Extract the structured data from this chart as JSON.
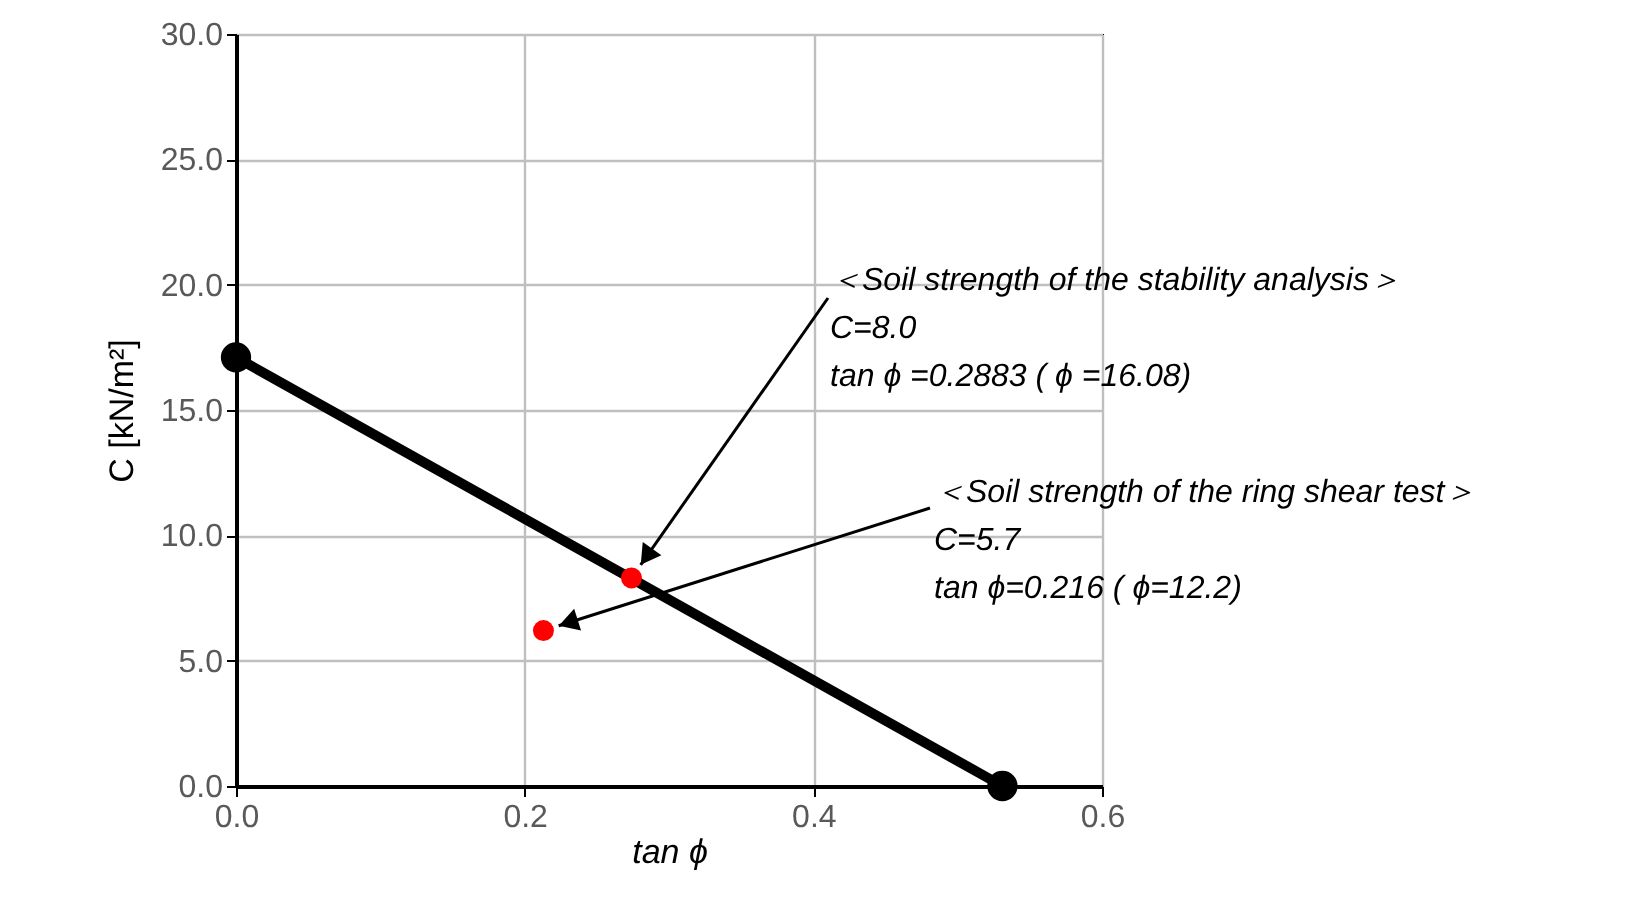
{
  "chart_data": {
    "type": "line",
    "xlabel": "tan ϕ",
    "ylabel": "C [kN/m²]",
    "xlim": [
      0,
      0.6
    ],
    "xticks": [
      {
        "value": 0,
        "label": "0.0"
      },
      {
        "value": 0.2,
        "label": "0.2"
      },
      {
        "value": 0.4,
        "label": "0.4"
      },
      {
        "value": 0.6,
        "label": "0.6"
      }
    ],
    "ylim": [
      0,
      30
    ],
    "yticks": [
      {
        "value": 0,
        "label": "0.0"
      },
      {
        "value": 5,
        "label": "5.0"
      },
      {
        "value": 10,
        "label": "10.0"
      },
      {
        "value": 15,
        "label": "15.0"
      },
      {
        "value": 20,
        "label": "20.0"
      },
      {
        "value": 25,
        "label": "25.0"
      },
      {
        "value": 30,
        "label": "30.0"
      }
    ],
    "grid": true,
    "series": [
      {
        "type": "line",
        "color": "#000000",
        "marker": "circle",
        "x": [
          0,
          0.531
        ],
        "values": [
          17.1,
          0
        ]
      },
      {
        "type": "scatter",
        "color": "#ff0000",
        "marker": "circle",
        "x": [
          0.274,
          0.213
        ],
        "values": [
          8.3,
          6.2
        ]
      }
    ],
    "annotations": [
      {
        "text": "＜Soil strength of the stability analysis＞\nC=8.0\ntan ϕ =0.2883 ( ϕ =16.08)",
        "x": 0.274,
        "y": 8.3
      },
      {
        "text": "＜Soil strength of the ring shear test＞\nC=5.7\ntan ϕ=0.216 ( ϕ=12.2)",
        "x": 0.213,
        "y": 6.2
      }
    ]
  }
}
